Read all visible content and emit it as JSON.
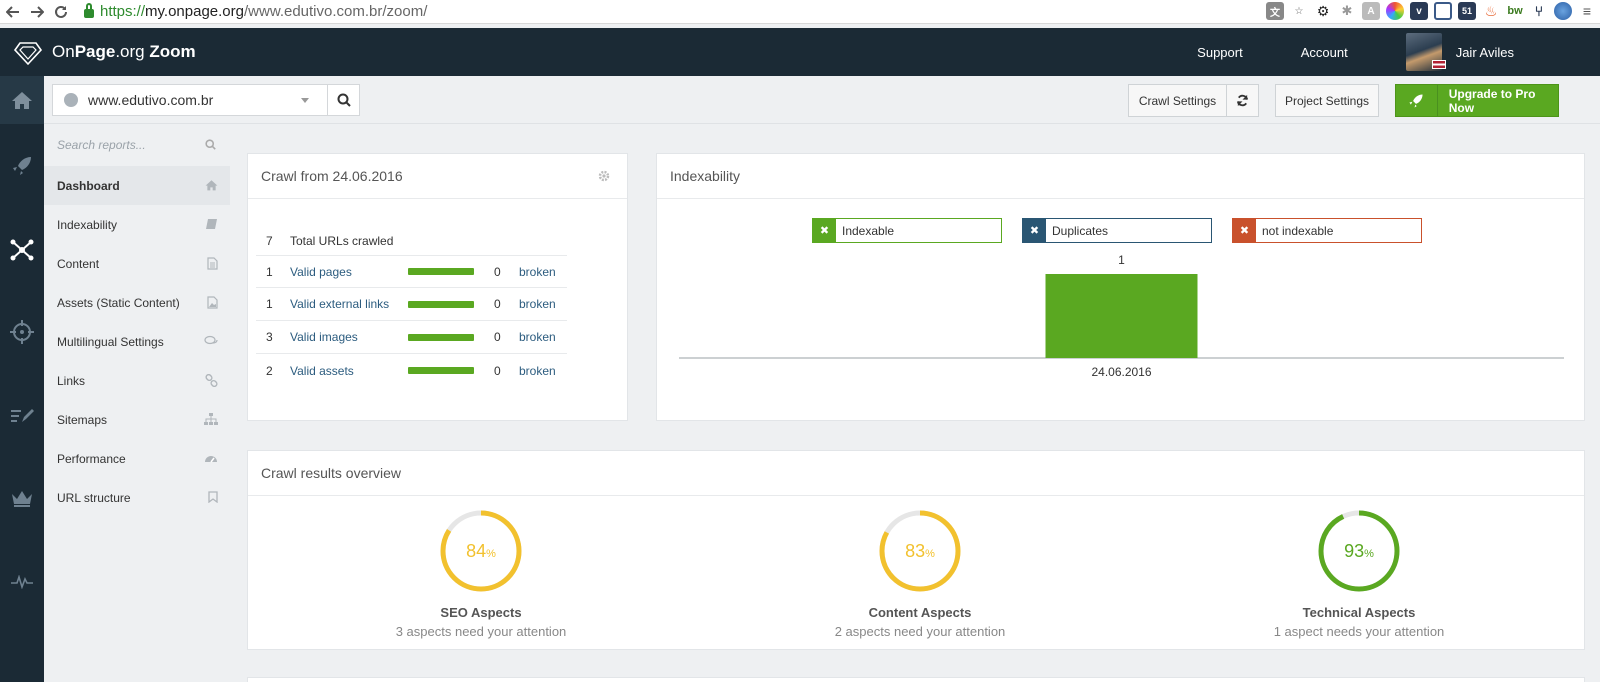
{
  "browser": {
    "url_proto": "https://",
    "url_host": "my.onpage.org",
    "url_path": "/www.edutivo.com.br/zoom/"
  },
  "header": {
    "logo_on": "On",
    "logo_page": "Page",
    "logo_org": ".org",
    "logo_zoom": "Zoom",
    "support": "Support",
    "account": "Account",
    "user": "Jair Aviles"
  },
  "toolbar": {
    "domain": "www.edutivo.com.br",
    "crawl_settings": "Crawl Settings",
    "project_settings": "Project Settings",
    "upgrade": "Upgrade to Pro Now"
  },
  "sidebar": {
    "search_placeholder": "Search reports...",
    "items": [
      {
        "label": "Dashboard",
        "icon": "home-icon"
      },
      {
        "label": "Indexability",
        "icon": "book-icon"
      },
      {
        "label": "Content",
        "icon": "document-icon"
      },
      {
        "label": "Assets (Static Content)",
        "icon": "image-file-icon"
      },
      {
        "label": "Multilingual Settings",
        "icon": "speech-bubbles-icon"
      },
      {
        "label": "Links",
        "icon": "link-icon"
      },
      {
        "label": "Sitemaps",
        "icon": "sitemap-icon"
      },
      {
        "label": "Performance",
        "icon": "speedometer-icon"
      },
      {
        "label": "URL structure",
        "icon": "bookmark-icon"
      }
    ]
  },
  "crawl": {
    "title": "Crawl from 24.06.2016",
    "total": {
      "count": "7",
      "label": "Total URLs crawled"
    },
    "rows": [
      {
        "count": "1",
        "label": "Valid pages",
        "broken_count": "0",
        "broken_label": "broken",
        "fill": 1.0
      },
      {
        "count": "1",
        "label": "Valid external links",
        "broken_count": "0",
        "broken_label": "broken",
        "fill": 1.0
      },
      {
        "count": "3",
        "label": "Valid images",
        "broken_count": "0",
        "broken_label": "broken",
        "fill": 1.0
      },
      {
        "count": "2",
        "label": "Valid assets",
        "broken_count": "0",
        "broken_label": "broken",
        "fill": 1.0
      }
    ]
  },
  "indexability": {
    "title": "Indexability",
    "legend": [
      {
        "label": "Indexable",
        "color": "#5aa821"
      },
      {
        "label": "Duplicates",
        "color": "#2a5673"
      },
      {
        "label": "not indexable",
        "color": "#c9512c"
      }
    ]
  },
  "chart_data": {
    "type": "bar",
    "categories": [
      "24.06.2016"
    ],
    "series": [
      {
        "name": "Indexable",
        "values": [
          1
        ]
      },
      {
        "name": "Duplicates",
        "values": [
          0
        ]
      },
      {
        "name": "not indexable",
        "values": [
          0
        ]
      }
    ],
    "data_labels": [
      "1"
    ],
    "ylim": [
      0,
      1
    ]
  },
  "overview": {
    "title": "Crawl results overview",
    "aspects": [
      {
        "value": 84,
        "value_text": "84",
        "unit": "%",
        "label": "SEO Aspects",
        "sub": "3 aspects need your attention",
        "color": "#f2c12e"
      },
      {
        "value": 83,
        "value_text": "83",
        "unit": "%",
        "label": "Content Aspects",
        "sub": "2 aspects need your attention",
        "color": "#f2c12e"
      },
      {
        "value": 93,
        "value_text": "93",
        "unit": "%",
        "label": "Technical Aspects",
        "sub": "1 aspect needs your attention",
        "color": "#5aa821"
      }
    ]
  }
}
